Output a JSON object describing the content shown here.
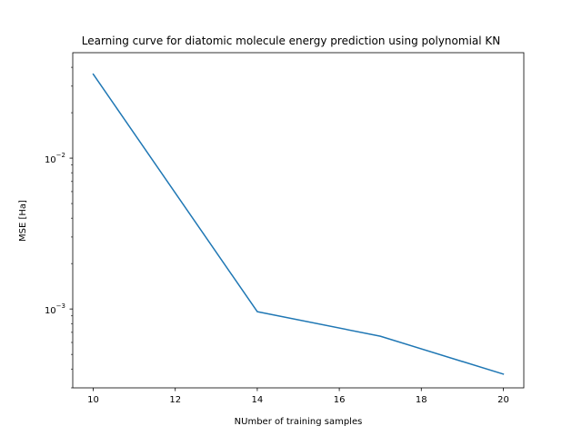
{
  "chart_data": {
    "type": "line",
    "title": "Learning curve for diatomic molecule energy prediction using polynomial KN",
    "xlabel": "NUmber of training samples",
    "ylabel": "MSE [Ha]",
    "yscale": "log",
    "xlim": [
      9.5,
      20.5
    ],
    "ylim": [
      0.0003,
      0.05
    ],
    "x_ticks": [
      10,
      12,
      14,
      16,
      18,
      20
    ],
    "x_tick_labels": [
      "10",
      "12",
      "14",
      "16",
      "18",
      "20"
    ],
    "y_major_ticks": [
      0.001,
      0.01
    ],
    "y_tick_labels": [
      {
        "base": "10",
        "exp": "−3"
      },
      {
        "base": "10",
        "exp": "−2"
      }
    ],
    "y_minor_ticks": [
      0.0003,
      0.0004,
      0.0005,
      0.0006,
      0.0007,
      0.0008,
      0.0009,
      0.002,
      0.003,
      0.004,
      0.005,
      0.006,
      0.007,
      0.008,
      0.009,
      0.02,
      0.03,
      0.04
    ],
    "grid": false,
    "series": [
      {
        "color": "#1f77b4",
        "x": [
          10,
          14,
          17,
          20
        ],
        "y": [
          0.036,
          0.00096,
          0.00066,
          0.00037
        ]
      }
    ]
  }
}
